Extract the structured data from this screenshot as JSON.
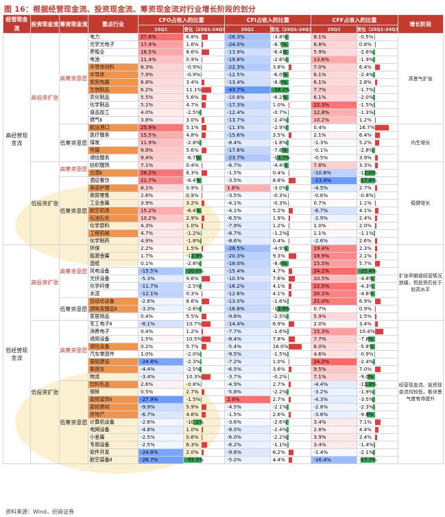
{
  "title": "图 16：根据经营现金流、投资现金流、筹资现金流对行业增长阶段的划分",
  "source": "资料来源：Wind，招商证券",
  "header": {
    "c1": "经营现金流",
    "c2": "投资现金流",
    "c3": "筹资现金流",
    "c4": "重点行业",
    "cfo": "CFO占收入的比重",
    "cfi": "CFI占收入的比重",
    "cff": "CFF占收入的比重",
    "q": "25Q1",
    "chg": "变化（25Q1-24Q1）",
    "stage": "增长阶段"
  },
  "groups": {
    "high_ocf": "高经营现金流",
    "low_ocf": "低经营现金流",
    "high_inv": "高投资扩张",
    "low_inv": "低投资扩张",
    "high_fin": "高筹资意愿",
    "low_fin": "低筹资意愿"
  },
  "stages": {
    "s1": "高景气扩张",
    "s2": "内生增长",
    "s3": "稳健增长",
    "s4": "扩张早期或经营情况放缓，但投资仍处于较高水平",
    "s5": "经营现金流、投资现金流均较低，板块景气度有待提升"
  },
  "rows": [
    {
      "name": "电力",
      "cfo": "27.6%",
      "cfoc": "6.8%",
      "cfi": "-26.3%",
      "cfic": "-3.8%",
      "cff": "8.1%",
      "cffc": "-0.5%",
      "cfo_v": 6.8,
      "cfi_v": -3.8,
      "cff_v": -0.5
    },
    {
      "name": "光学光电子",
      "cfo": "17.9%",
      "cfoc": "1.6%",
      "cfi": "-24.0%",
      "cfic": "-8.7%",
      "cff": "6.8%",
      "cffc": "0.8%",
      "cfo_v": 1.6,
      "cfi_v": -8.7,
      "cff_v": 0.8
    },
    {
      "name": "养殖业",
      "cfo": "16.5%",
      "cfoc": "8.6%",
      "cfi": "-13.9%",
      "cfic": "-6.4%",
      "cff": "5.9%",
      "cffc": "-2.6%",
      "cfo_v": 8.6,
      "cfi_v": -6.4,
      "cff_v": -2.6
    },
    {
      "name": "电池",
      "cfo": "11.4%",
      "cfoc": "0.9%",
      "cfi": "-19.8%",
      "cfic": "-2.6%",
      "cff": "13.6%",
      "cffc": "-1.9%",
      "cfo_v": 0.9,
      "cfi_v": -2.6,
      "cff_v": -1.9
    },
    {
      "name": "半导体材料",
      "cfo": "8.3%",
      "cfoc": "-0.9%",
      "cfi": "-22.3%",
      "cfic": "3.8%",
      "cff": "7.0%",
      "cffc": "6.4%",
      "cfo_v": -0.9,
      "cfi_v": 3.8,
      "cff_v": 6.4,
      "hl": true
    },
    {
      "name": "半导体",
      "cfo": "7.9%",
      "cfoc": "-0.9%",
      "cfi": "-12.5%",
      "cfic": "-6.0%",
      "cff": "6.1%",
      "cffc": "-2.4%",
      "cfo_v": -0.9,
      "cfi_v": -6.0,
      "cff_v": -2.4,
      "hl": true
    },
    {
      "name": "家用电器",
      "cfo": "6.8%",
      "cfoc": "3.4%",
      "cfi": "-13.4%",
      "cfic": "-8.8%",
      "cff": "6.1%",
      "cffc": "2.8%",
      "cfo_v": 3.4,
      "cfi_v": -8.8,
      "cff_v": 2.8,
      "hl": true
    },
    {
      "name": "生物制品",
      "cfo": "6.2%",
      "cfoc": "11.1%",
      "cfi": "-43.7%",
      "cfic": "-28.1%",
      "cff": "7.7%",
      "cffc": "-1.7%",
      "cfo_v": 11.1,
      "cfi_v": -28.1,
      "cff_v": -1.7,
      "hl": true
    },
    {
      "name": "农化制品",
      "cfo": "5.5%",
      "cfoc": "5.6%",
      "cfi": "-10.8%",
      "cfic": "-6.2%",
      "cff": "6.1%",
      "cffc": "-2.0%",
      "cfo_v": 5.6,
      "cfi_v": -6.2,
      "cff_v": -2.0
    },
    {
      "name": "化学制品",
      "cfo": "5.1%",
      "cfoc": "4.7%",
      "cfi": "-17.3%",
      "cfic": "1.0%",
      "cff": "22.3%",
      "cffc": "-1.5%",
      "cfo_v": 4.7,
      "cfi_v": 1.0,
      "cff_v": -1.5
    },
    {
      "name": "食品加工",
      "cfo": "4.0%",
      "cfoc": "-2.5%",
      "cfi": "-12.4%",
      "cfic": "-0.7%",
      "cff": "12.8%",
      "cffc": "-1.3%",
      "cfo_v": -2.5,
      "cfi_v": -0.7,
      "cff_v": -1.3
    },
    {
      "name": "燃气Ⅱ",
      "cfo": "3.8%",
      "cfoc": "3.0%",
      "cfi": "-13.7%",
      "cfic": "-2.4%",
      "cff": "10.2%",
      "cffc": "1.2%",
      "cfo_v": 3.0,
      "cfi_v": -2.4,
      "cff_v": 1.2
    },
    {
      "name": "航运港口",
      "cfo": "25.9%",
      "cfoc": "5.1%",
      "cfi": "-11.3%",
      "cfic": "-2.9%",
      "cff": "0.4%",
      "cffc": "16.7%",
      "cfo_v": 5.1,
      "cfi_v": -2.9,
      "cff_v": 16.7,
      "hl": true
    },
    {
      "name": "医疗服务",
      "cfo": "15.5%",
      "cfoc": "4.8%",
      "cfi": "-15.6%",
      "cfic": "3.5%",
      "cff": "2.1%",
      "cffc": "6.4%",
      "cfo_v": 4.8,
      "cfi_v": 3.5,
      "cff_v": 6.4
    },
    {
      "name": "煤炭",
      "cfo": "11.9%",
      "cfoc": "-2.8%",
      "cfi": "-8.4%",
      "cfic": "-1.8%",
      "cff": "-1.3%",
      "cffc": "5.2%",
      "cfo_v": -2.8,
      "cfi_v": -1.8,
      "cff_v": 5.2
    },
    {
      "name": "传媒",
      "cfo": "9.9%",
      "cfoc": "5.6%",
      "cfi": "-17.6%",
      "cfic": "-7.6%",
      "cff": "-0.1%",
      "cffc": "-2.8%",
      "cfo_v": 5.6,
      "cfi_v": -7.6,
      "cff_v": -2.8,
      "hl": true
    },
    {
      "name": "通信服务",
      "cfo": "9.4%",
      "cfoc": "-6.7%",
      "cfi": "-23.7%",
      "cfic": "-13.7%",
      "cff": "-0.5%",
      "cffc": "3.9%",
      "cfo_v": -6.7,
      "cfi_v": -13.7,
      "cff_v": 3.9
    },
    {
      "name": "纺织服饰",
      "cfo": "7.1%",
      "cfoc": "0.4%",
      "cfi": "-6.7%",
      "cfic": "-4.4%",
      "cff": "7.8%",
      "cffc": "3.3%",
      "cfo_v": 0.4,
      "cfi_v": -4.4,
      "cff_v": 3.3
    },
    {
      "name": "白酒Ⅱ",
      "cfo": "26.2%",
      "cfoc": "6.3%",
      "cfi": "-1.5%",
      "cfic": "0.4%",
      "cff": "-10.8%",
      "cffc": "-12.0%",
      "cfo_v": 6.3,
      "cfi_v": 0.4,
      "cff_v": -12.0,
      "hl": true
    },
    {
      "name": "酒店餐饮",
      "cfo": "21.7%",
      "cfoc": "-6.4%",
      "cfi": "-3.5%",
      "cfic": "8.8%",
      "cff": "-23.9%",
      "cffc": "-17.6%",
      "cfo_v": -6.4,
      "cfi_v": 8.8,
      "cff_v": -17.6
    },
    {
      "name": "美容护理",
      "cfo": "8.1%",
      "cfoc": "0.9%",
      "cfi": "1.6%",
      "cfic": "-3.0%",
      "cff": "-4.5%",
      "cffc": "2.7%",
      "cfo_v": 0.9,
      "cfi_v": -3.0,
      "cff_v": 2.7,
      "hl": true
    },
    {
      "name": "商贸零售",
      "cfo": "2.6%",
      "cfoc": "0.9%",
      "cfi": "-3.5%",
      "cfic": "-0.3%",
      "cff": "-0.6%",
      "cffc": "-0.8%",
      "cfo_v": 0.9,
      "cfi_v": -0.3,
      "cff_v": -0.8
    },
    {
      "name": "工业金属",
      "cfo": "3.9%",
      "cfoc": "3.2%",
      "cfi": "-4.1%",
      "cfic": "-0.3%",
      "cff": "0.7%",
      "cffc": "1.1%",
      "cfo_v": 3.2,
      "cfi_v": -0.3,
      "cff_v": 1.1
    },
    {
      "name": "航空机场",
      "cfo": "15.2%",
      "cfoc": "-6.4%",
      "cfi": "-4.1%",
      "cfic": "5.2%",
      "cff": "-6.7%",
      "cffc": "4.1%",
      "cfo_v": -6.4,
      "cfi_v": 5.2,
      "cff_v": 4.1,
      "hl": true
    },
    {
      "name": "石油石化",
      "cfo": "10.2%",
      "cfoc": "2.9%",
      "cfi": "-6.5%",
      "cfic": "1.9%",
      "cff": "-2.9%",
      "cffc": "2.4%",
      "cfo_v": 2.9,
      "cfi_v": 1.9,
      "cff_v": 2.4,
      "hl": true
    },
    {
      "name": "化学原料",
      "cfo": "4.3%",
      "cfoc": "1.0%",
      "cfi": "-7.9%",
      "cfic": "1.2%",
      "cff": "1.0%",
      "cffc": "2.0%",
      "cfo_v": 1.0,
      "cfi_v": 1.2,
      "cff_v": 2.0
    },
    {
      "name": "工程机械",
      "cfo": "4.7%",
      "cfoc": "-1.2%",
      "cfi": "-8.7%",
      "cfic": "-1.2%",
      "cff": "1.1%",
      "cffc": "-1.1%",
      "cfo_v": -1.2,
      "cfi_v": -1.2,
      "cff_v": -1.1,
      "hl": true
    },
    {
      "name": "化学制药",
      "cfo": "4.9%",
      "cfoc": "-1.8%",
      "cfi": "-8.6%",
      "cfic": "0.4%",
      "cff": "-2.6%",
      "cffc": "2.6%",
      "cfo_v": -1.8,
      "cfi_v": 0.4,
      "cff_v": 2.6
    },
    {
      "name": "环保",
      "cfo": "2.2%",
      "cfoc": "1.5%",
      "cfi": "-28.5%",
      "cfic": "-4.9%",
      "cff": "19.4%",
      "cffc": "2.3%",
      "cfo_v": 1.5,
      "cfi_v": -4.9,
      "cff_v": 2.3
    },
    {
      "name": "能源金属",
      "cfo": "1.7%",
      "cfoc": "-12.9%",
      "cfi": "-20.3%",
      "cfic": "9.3%",
      "cff": "18.9%",
      "cffc": "2.1%",
      "cfo_v": -12.9,
      "cfi_v": 9.3,
      "cff_v": 2.1
    },
    {
      "name": "造纸",
      "cfo": "0.1%",
      "cfoc": "-2.8%",
      "cfi": "-18.0%",
      "cfic": "-8.4%",
      "cff": "15.5%",
      "cffc": "5.7%",
      "cfo_v": -2.8,
      "cfi_v": -8.4,
      "cff_v": 5.7
    },
    {
      "name": "风电设备",
      "cfo": "-15.5%",
      "cfoc": "-20.0%",
      "cfi": "-15.4%",
      "cfic": "4.7%",
      "cff": "24.1%",
      "cffc": "-25.4%",
      "cfo_v": -20.0,
      "cfi_v": 4.7,
      "cff_v": -25.4
    },
    {
      "name": "光伏设备",
      "cfo": "-5.3%",
      "cfoc": "9.6%",
      "cfi": "-10.5%",
      "cfic": "7.6%",
      "cff": "10.5%",
      "cffc": "-4.8%",
      "cfo_v": 9.6,
      "cfi_v": 7.6,
      "cff_v": -4.8
    },
    {
      "name": "化学纤维",
      "cfo": "-11.7%",
      "cfoc": "-2.5%",
      "cfi": "-16.2%",
      "cfic": "4.1%",
      "cff": "22.5%",
      "cffc": "-4.3%",
      "cfo_v": -2.5,
      "cfi_v": 4.1,
      "cff_v": -4.3
    },
    {
      "name": "水泥",
      "cfo": "-12.1%",
      "cfoc": "0.3%",
      "cfi": "-12.6%",
      "cfic": "4.1%",
      "cff": "20.1%",
      "cffc": "-4.6%",
      "cfo_v": 0.3,
      "cfi_v": 4.1,
      "cff_v": -4.6
    },
    {
      "name": "自动化设备",
      "cfo": "-2.6%",
      "cfoc": "8.6%",
      "cfi": "-13.0%",
      "cfic": "-1.6%",
      "cff": "21.0%",
      "cffc": "6.9%",
      "cfo_v": 8.6,
      "cfi_v": -1.6,
      "cff_v": 6.9,
      "hl": true
    },
    {
      "name": "调味发酵品Ⅱ",
      "cfo": "-3.3%",
      "cfoc": "-2.6%",
      "cfi": "-16.8%",
      "cfic": "-13.9%",
      "cff": "0.7%",
      "cffc": "0.9%",
      "cfo_v": -2.6,
      "cfi_v": -13.9,
      "cff_v": 0.9,
      "hl": true
    },
    {
      "name": "家居用品",
      "cfo": "0.4%",
      "cfoc": "5.5%",
      "cfi": "-9.6%",
      "cfic": "-2.5%",
      "cff": "5.9%",
      "cffc": "1.5%",
      "cfo_v": 5.5,
      "cfi_v": -2.5,
      "cff_v": 1.5
    },
    {
      "name": "军工电子Ⅱ",
      "cfo": "-8.1%",
      "cfoc": "10.7%",
      "cfi": "-14.4%",
      "cfic": "6.9%",
      "cff": "2.0%",
      "cffc": "3.4%",
      "cfo_v": 10.7,
      "cfi_v": 6.9,
      "cff_v": 3.4
    },
    {
      "name": "消费电子",
      "cfo": "0.4%",
      "cfoc": "1.2%",
      "cfi": "-7.7%",
      "cfic": "-1.6%",
      "cff": "15.3%",
      "cffc": "10.4%",
      "cfo_v": 1.2,
      "cfi_v": -1.6,
      "cff_v": 10.4
    },
    {
      "name": "通用设备",
      "cfo": "1.5%",
      "cfoc": "10.5%",
      "cfi": "-8.4%",
      "cfic": "7.8%",
      "cff": "7.7%",
      "cffc": "-7.8%",
      "cfo_v": 10.5,
      "cfi_v": 7.8,
      "cff_v": -7.8
    },
    {
      "name": "通信设备",
      "cfo": "0.2%",
      "cfoc": "5.7%",
      "cfi": "-5.4%",
      "cfic": "16.0%",
      "cff": "6.0%",
      "cffc": "-5.8%",
      "cfo_v": 5.7,
      "cfi_v": 16.0,
      "cff_v": -5.8,
      "hl": true
    },
    {
      "name": "汽车零部件",
      "cfo": "1.0%",
      "cfoc": "-2.0%",
      "cfi": "-9.5%",
      "cfic": "-1.5%",
      "cff": "4.6%",
      "cffc": "-0.9%",
      "cfo_v": -2.0,
      "cfi_v": -1.5,
      "cff_v": -0.9
    },
    {
      "name": "基础建设",
      "cfo": "-24.8%",
      "cfoc": "-2.3%",
      "cfi": "-7.2%",
      "cfoc2": "",
      "cfic": "1.0%",
      "cff": "24.2%",
      "cffc": "-2.4%",
      "cfo_v": -2.3,
      "cfi_v": 1.0,
      "cff_v": -2.4,
      "hl": true
    },
    {
      "name": "乘用车",
      "cfo": "-4.4%",
      "cfoc": "-2.5%",
      "cfi": "-6.5%",
      "cfic": "3.6%",
      "cff": "9.5%",
      "cffc": "7.0%",
      "cfo_v": -2.5,
      "cfi_v": 3.6,
      "cff_v": 7.0,
      "hl": true
    },
    {
      "name": "物流",
      "cfo": "-3.4%",
      "cfoc": "10.3%",
      "cfi": "-3.7%",
      "cfic": "-0.2%",
      "cff": "7.1%",
      "cffc": "-9.0%",
      "cfo_v": 10.3,
      "cfi_v": -0.2,
      "cff_v": -9.0
    },
    {
      "name": "饮料乳品",
      "cfo": "2.6%",
      "cfoc": "-0.8%",
      "cfi": "-4.9%",
      "cfic": "2.7%",
      "cff": "-4.4%",
      "cffc": "-11.8%",
      "cfo_v": -0.8,
      "cfi_v": 2.7,
      "cff_v": -11.8,
      "hl": true
    },
    {
      "name": "钢铁",
      "cfo": "0.5%",
      "cfoc": "2.7%",
      "cfi": "-5.8%",
      "cfic": "-2.2%",
      "cff": "-3.2%",
      "cffc": "-1.9%",
      "cfo_v": 2.7,
      "cfi_v": -2.2,
      "cff_v": -1.9
    },
    {
      "name": "装修装饰Ⅱ",
      "cfo": "-27.9%",
      "cfoc": "-1.5%",
      "cfi": "2.9%",
      "cfic": "2.7%",
      "cff": "-4.3%",
      "cffc": "-3.5%",
      "cfo_v": -1.5,
      "cfi_v": 2.7,
      "cff_v": -3.5,
      "hl": true
    },
    {
      "name": "装修建材",
      "cfo": "-9.9%",
      "cfoc": "5.9%",
      "cfi": "-4.5%",
      "cfic": "-2.1%",
      "cff": "-2.8%",
      "cffc": "-2.3%",
      "cfo_v": 5.9,
      "cfi_v": -2.1,
      "cff_v": -2.3,
      "hl": true
    },
    {
      "name": "房地产",
      "cfo": "-6.7%",
      "cfoc": "4.6%",
      "cfi": "-1.5%",
      "cfic": "2.6%",
      "cff": "-3.6%",
      "cffc": "-9.8%",
      "cfo_v": 4.6,
      "cfi_v": 2.6,
      "cff_v": -9.8,
      "hl": true
    },
    {
      "name": "计算机设备",
      "cfo": "-2.6%",
      "cfoc": "-10.1%",
      "cfi": "-3.6%",
      "cfic": "-2.6%",
      "cff": "3.4%",
      "cffc": "7.1%",
      "cfo_v": -10.1,
      "cfi_v": -2.6,
      "cff_v": 7.1
    },
    {
      "name": "电网设备",
      "cfo": "-4.8%",
      "cfoc": "1.0%",
      "cfi": "-8.0%",
      "cfic": "-2.4%",
      "cff": "2.8%",
      "cffc": "4.4%",
      "cfo_v": 1.0,
      "cfi_v": -2.4,
      "cff_v": 4.4
    },
    {
      "name": "小金属",
      "cfo": "-2.5%",
      "cfoc": "0.6%",
      "cfi": "-6.0%",
      "cfic": "-2.2%",
      "cff": "3.9%",
      "cffc": "2.4%",
      "cfo_v": 0.6,
      "cfi_v": -2.2,
      "cff_v": 2.4
    },
    {
      "name": "专用设备",
      "cfo": "-2.5%",
      "cfoc": "6.3%",
      "cfi": "-6.2%",
      "cfic": "-1.1%",
      "cff": "3.4%",
      "cffc": "-1.4%",
      "cfo_v": 6.3,
      "cfi_v": -1.1,
      "cff_v": -1.4
    },
    {
      "name": "软件开发",
      "cfo": "-24.8%",
      "cfoc": "2.0%",
      "cfi": "-9.6%",
      "cfic": "6.2%",
      "cff": "-1.4%",
      "cffc": "-2.1%",
      "cfo_v": 2.0,
      "cfi_v": 6.2,
      "cff_v": -2.1
    },
    {
      "name": "航空装备Ⅱ",
      "cfo": "-26.7%",
      "cfoc": "-55.5%",
      "cfi": "-5.0%",
      "cfic": "4.4%",
      "cff": "-16.4%",
      "cffc": "-17.7%",
      "cfo_v": -55.5,
      "cfi_v": 4.4,
      "cff_v": -17.7
    }
  ],
  "colors": {
    "header": "#c33a2e",
    "pos": "#e13b3b",
    "neg": "#3aa655",
    "highlight": "#f0944b"
  }
}
